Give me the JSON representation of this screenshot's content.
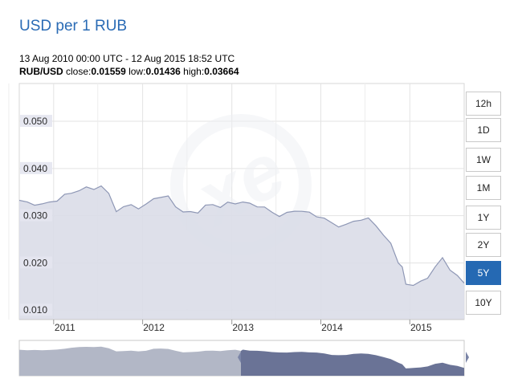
{
  "header": {
    "title": "USD per 1 RUB",
    "range_text": "13 Aug 2010 00:00 UTC - 12 Aug 2015 18:52 UTC",
    "pair": "RUB/USD",
    "close_label": " close:",
    "close": "0.01559",
    "low_label": " low:",
    "low": "0.01436",
    "high_label": " high:",
    "high": "0.03664"
  },
  "range_buttons": [
    {
      "label": "12h",
      "active": false
    },
    {
      "label": "1D",
      "active": false
    },
    {
      "label": "1W",
      "active": false
    },
    {
      "label": "1M",
      "active": false
    },
    {
      "label": "1Y",
      "active": false
    },
    {
      "label": "2Y",
      "active": false
    },
    {
      "label": "5Y",
      "active": true
    },
    {
      "label": "10Y",
      "active": false
    }
  ],
  "colors": {
    "title": "#2a6bb5",
    "line": "#8e97b5",
    "area": "#dadde8",
    "active_button": "#2569b3",
    "navigator_selected": "#6a7396",
    "navigator_unselected": "#b2b7c6"
  },
  "watermark": "xe",
  "chart_data": {
    "type": "area",
    "title": "USD per 1 RUB",
    "xlabel": "",
    "ylabel": "",
    "ylim": [
      0.008,
      0.058
    ],
    "x_ticks": [
      "2011",
      "2012",
      "2013",
      "2014",
      "2015"
    ],
    "y_ticks": [
      "0.010",
      "0.020",
      "0.030",
      "0.040",
      "0.050"
    ],
    "grid": true,
    "series": [
      {
        "x": [
          "2010-08-13",
          "2010-09-15",
          "2010-10-15",
          "2010-11-15",
          "2010-12-15",
          "2011-01-15",
          "2011-02-15",
          "2011-03-15",
          "2011-04-15",
          "2011-05-15",
          "2011-06-15",
          "2011-07-15",
          "2011-08-15",
          "2011-09-15",
          "2011-10-15",
          "2011-11-15",
          "2011-12-15",
          "2012-01-15",
          "2012-02-15",
          "2012-03-15",
          "2012-04-15",
          "2012-05-15",
          "2012-06-15",
          "2012-07-15",
          "2012-08-15",
          "2012-09-15",
          "2012-10-15",
          "2012-11-15",
          "2012-12-15",
          "2013-01-15",
          "2013-02-15",
          "2013-03-15",
          "2013-04-15",
          "2013-05-15",
          "2013-06-15",
          "2013-07-15",
          "2013-08-15",
          "2013-09-15",
          "2013-10-15",
          "2013-11-15",
          "2013-12-15",
          "2014-01-15",
          "2014-02-15",
          "2014-03-15",
          "2014-04-15",
          "2014-05-15",
          "2014-06-15",
          "2014-07-15",
          "2014-08-15",
          "2014-09-15",
          "2014-10-15",
          "2014-11-15",
          "2014-12-01",
          "2014-12-16",
          "2015-01-15",
          "2015-02-15",
          "2015-03-15",
          "2015-04-15",
          "2015-05-15",
          "2015-06-15",
          "2015-07-15",
          "2015-08-12"
        ],
        "values": [
          0.033,
          0.0325,
          0.0328,
          0.0325,
          0.0328,
          0.0332,
          0.034,
          0.035,
          0.0357,
          0.0358,
          0.0357,
          0.036,
          0.0345,
          0.0315,
          0.0318,
          0.0322,
          0.0315,
          0.032,
          0.034,
          0.0342,
          0.0338,
          0.032,
          0.0305,
          0.0308,
          0.0312,
          0.032,
          0.0322,
          0.0318,
          0.0325,
          0.033,
          0.0331,
          0.0322,
          0.032,
          0.0316,
          0.0308,
          0.0304,
          0.0303,
          0.0308,
          0.031,
          0.0305,
          0.0303,
          0.0295,
          0.028,
          0.0278,
          0.028,
          0.029,
          0.0295,
          0.029,
          0.0278,
          0.026,
          0.024,
          0.0205,
          0.019,
          0.015,
          0.0155,
          0.016,
          0.017,
          0.0195,
          0.0205,
          0.0185,
          0.0175,
          0.0156
        ]
      }
    ]
  }
}
